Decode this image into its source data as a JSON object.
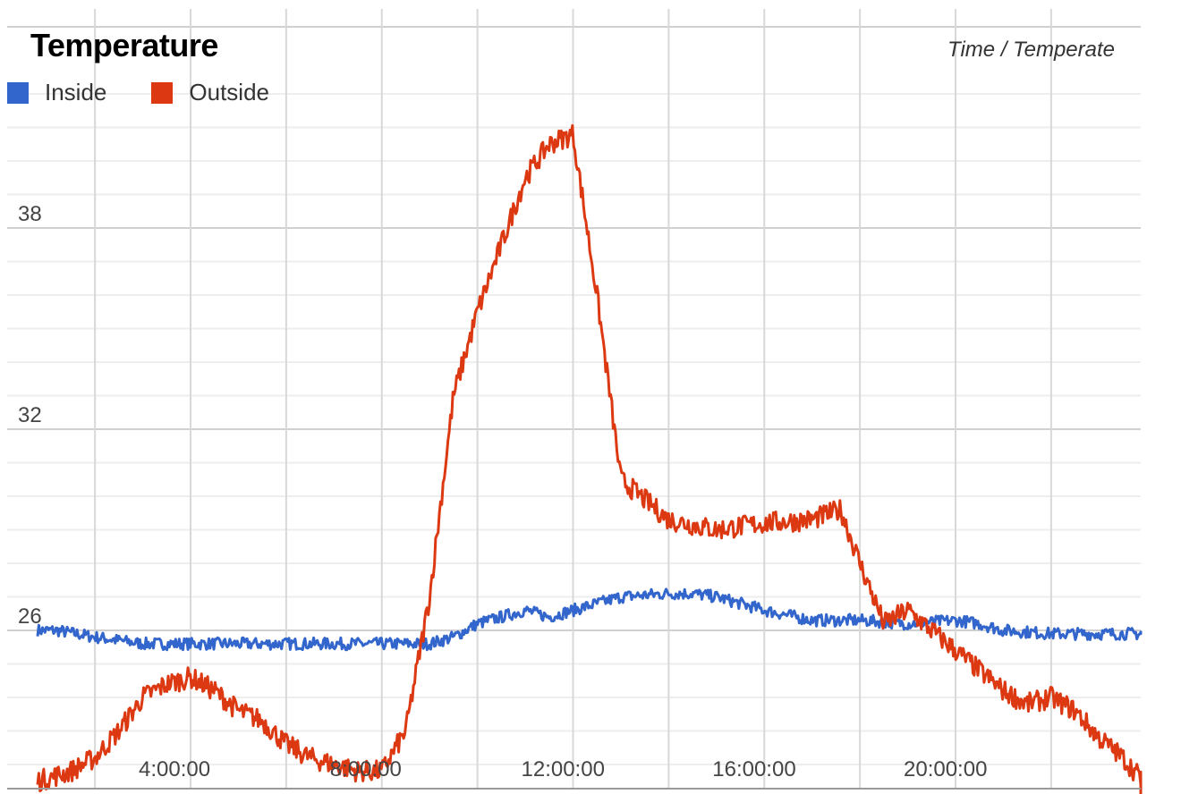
{
  "chart_data": {
    "type": "line",
    "title": "Temperature",
    "axes_caption": "Time / Temperate",
    "legend_position": "top-left",
    "grid": true,
    "x_range_hours": [
      0.8,
      24
    ],
    "ylim": [
      20.5,
      41.5
    ],
    "x_ticks": [
      {
        "value": 4,
        "label": "4:00:00"
      },
      {
        "value": 8,
        "label": "8:00:00"
      },
      {
        "value": 12,
        "label": "12:00:00"
      },
      {
        "value": 16,
        "label": "16:00:00"
      },
      {
        "value": 20,
        "label": "20:00:00"
      }
    ],
    "y_ticks": [
      {
        "value": 38,
        "label": "38"
      },
      {
        "value": 32,
        "label": "32"
      },
      {
        "value": 26,
        "label": "26"
      }
    ],
    "series": [
      {
        "name": "Inside",
        "color": "#3366cc",
        "x": [
          0.8,
          1.2,
          2,
          3,
          4,
          5,
          6,
          7,
          8,
          9,
          9.5,
          10,
          11,
          11.5,
          12,
          13,
          14,
          14.5,
          15,
          16,
          17,
          18,
          19,
          20,
          20.5,
          21,
          22,
          23,
          24
        ],
        "y": [
          26,
          26,
          25.8,
          25.6,
          25.6,
          25.6,
          25.6,
          25.6,
          25.6,
          25.6,
          25.8,
          26.2,
          26.6,
          26.4,
          26.6,
          27,
          27.1,
          27.1,
          27,
          26.6,
          26.3,
          26.3,
          26.2,
          26.3,
          26.2,
          26,
          25.9,
          25.9,
          25.9
        ]
      },
      {
        "name": "Outside",
        "color": "#dc3912",
        "x": [
          0.8,
          1.5,
          2,
          2.5,
          3,
          3.5,
          4,
          4.5,
          5,
          5.5,
          6,
          6.5,
          7,
          7.5,
          8,
          8.5,
          9,
          9.5,
          10,
          10.5,
          11,
          11.5,
          12,
          12.5,
          13,
          14,
          15,
          16,
          17,
          17.6,
          18,
          18.5,
          19,
          19.5,
          20,
          20.5,
          21,
          21.5,
          22,
          22.5,
          23,
          23.5,
          24
        ],
        "y": [
          21.5,
          21.8,
          22.2,
          23,
          24,
          24.4,
          24.6,
          24.2,
          23.6,
          23.3,
          22.6,
          22.2,
          22,
          21.8,
          21.8,
          23,
          27,
          33,
          35.5,
          37.5,
          39.5,
          40.5,
          40.8,
          36,
          30.5,
          29.3,
          29,
          29.2,
          29.3,
          29.6,
          28,
          26.2,
          26.6,
          26,
          25.4,
          24.8,
          24.2,
          23.8,
          24,
          23.6,
          22.8,
          22.2,
          21.4
        ]
      }
    ]
  }
}
